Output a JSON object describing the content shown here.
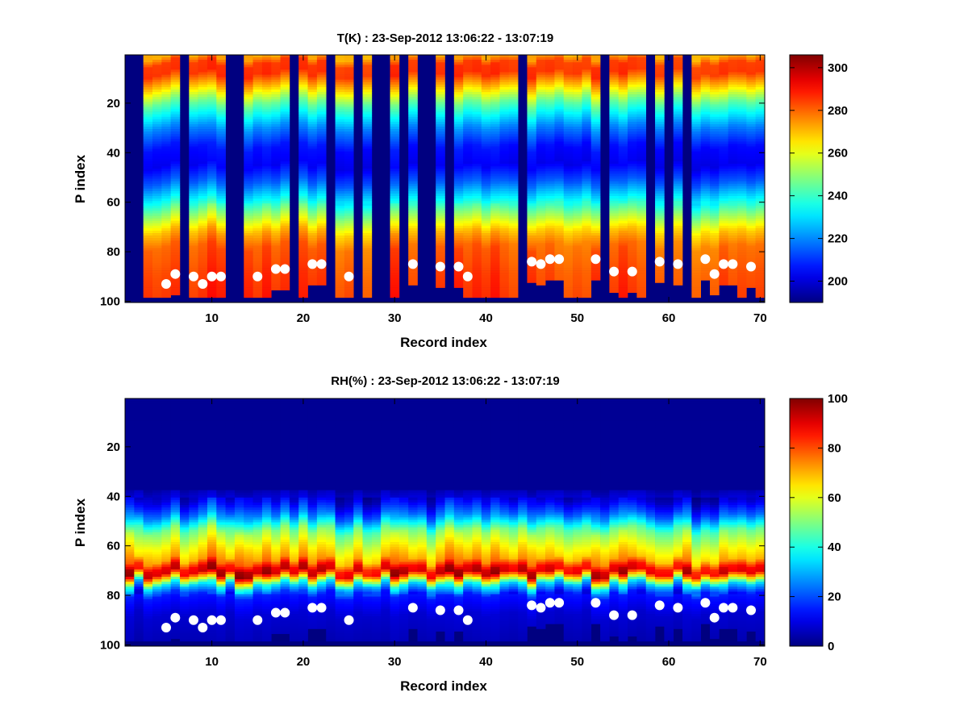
{
  "chart_data": [
    {
      "type": "heatmap",
      "title": "T(K) : 23-Sep-2012 13:06:22 - 13:07:19",
      "xlabel": "Record index",
      "ylabel": "P index",
      "xlim": [
        0.5,
        70.5
      ],
      "ylim": [
        100.5,
        0.5
      ],
      "y_reversed": true,
      "x_ticks": [
        10,
        20,
        30,
        40,
        50,
        60,
        70
      ],
      "y_ticks": [
        20,
        40,
        60,
        80,
        100
      ],
      "colormap": "jet",
      "colorbar": {
        "clim": [
          190,
          306
        ],
        "ticks": [
          200,
          220,
          240,
          260,
          280,
          300
        ]
      },
      "empty_records": [
        1,
        2,
        7,
        12,
        13,
        19,
        23,
        26,
        28,
        29,
        31,
        33,
        34,
        36,
        44,
        53,
        58,
        60,
        62
      ],
      "surface_markers": [
        {
          "x": 5,
          "y": 93
        },
        {
          "x": 6,
          "y": 89
        },
        {
          "x": 8,
          "y": 90
        },
        {
          "x": 9,
          "y": 93
        },
        {
          "x": 10,
          "y": 90
        },
        {
          "x": 11,
          "y": 90
        },
        {
          "x": 15,
          "y": 90
        },
        {
          "x": 17,
          "y": 87
        },
        {
          "x": 18,
          "y": 87
        },
        {
          "x": 21,
          "y": 85
        },
        {
          "x": 22,
          "y": 85
        },
        {
          "x": 25,
          "y": 90
        },
        {
          "x": 32,
          "y": 85
        },
        {
          "x": 35,
          "y": 86
        },
        {
          "x": 37,
          "y": 86
        },
        {
          "x": 38,
          "y": 90
        },
        {
          "x": 45,
          "y": 84
        },
        {
          "x": 46,
          "y": 85
        },
        {
          "x": 47,
          "y": 83
        },
        {
          "x": 48,
          "y": 83
        },
        {
          "x": 52,
          "y": 83
        },
        {
          "x": 54,
          "y": 88
        },
        {
          "x": 56,
          "y": 88
        },
        {
          "x": 59,
          "y": 84
        },
        {
          "x": 61,
          "y": 85
        },
        {
          "x": 64,
          "y": 83
        },
        {
          "x": 65,
          "y": 89
        },
        {
          "x": 66,
          "y": 85
        },
        {
          "x": 67,
          "y": 85
        },
        {
          "x": 69,
          "y": 86
        }
      ],
      "profile": [
        [
          1,
          272
        ],
        [
          4,
          285
        ],
        [
          8,
          286
        ],
        [
          13,
          270
        ],
        [
          20,
          245
        ],
        [
          30,
          220
        ],
        [
          38,
          206
        ],
        [
          45,
          203
        ],
        [
          52,
          215
        ],
        [
          60,
          236
        ],
        [
          67,
          256
        ],
        [
          72,
          270
        ],
        [
          78,
          280
        ],
        [
          90,
          284
        ],
        [
          100,
          286
        ]
      ]
    },
    {
      "type": "heatmap",
      "title": "RH(%) : 23-Sep-2012 13:06:22 - 13:07:19",
      "xlabel": "Record index",
      "ylabel": "P index",
      "xlim": [
        0.5,
        70.5
      ],
      "ylim": [
        100.5,
        0.5
      ],
      "y_reversed": true,
      "x_ticks": [
        10,
        20,
        30,
        40,
        50,
        60,
        70
      ],
      "y_ticks": [
        20,
        40,
        60,
        80,
        100
      ],
      "colormap": "jet",
      "colorbar": {
        "clim": [
          0,
          100
        ],
        "ticks": [
          0,
          20,
          40,
          60,
          80,
          100
        ]
      },
      "empty_records": [],
      "surface_markers": [
        {
          "x": 5,
          "y": 93
        },
        {
          "x": 6,
          "y": 89
        },
        {
          "x": 8,
          "y": 90
        },
        {
          "x": 9,
          "y": 93
        },
        {
          "x": 10,
          "y": 90
        },
        {
          "x": 11,
          "y": 90
        },
        {
          "x": 15,
          "y": 90
        },
        {
          "x": 17,
          "y": 87
        },
        {
          "x": 18,
          "y": 87
        },
        {
          "x": 21,
          "y": 85
        },
        {
          "x": 22,
          "y": 85
        },
        {
          "x": 25,
          "y": 90
        },
        {
          "x": 32,
          "y": 85
        },
        {
          "x": 35,
          "y": 86
        },
        {
          "x": 37,
          "y": 86
        },
        {
          "x": 38,
          "y": 90
        },
        {
          "x": 45,
          "y": 84
        },
        {
          "x": 46,
          "y": 85
        },
        {
          "x": 47,
          "y": 83
        },
        {
          "x": 48,
          "y": 83
        },
        {
          "x": 52,
          "y": 83
        },
        {
          "x": 54,
          "y": 88
        },
        {
          "x": 56,
          "y": 88
        },
        {
          "x": 59,
          "y": 84
        },
        {
          "x": 61,
          "y": 85
        },
        {
          "x": 64,
          "y": 83
        },
        {
          "x": 65,
          "y": 89
        },
        {
          "x": 66,
          "y": 85
        },
        {
          "x": 67,
          "y": 85
        },
        {
          "x": 69,
          "y": 86
        }
      ],
      "profile": [
        [
          1,
          2
        ],
        [
          36,
          3
        ],
        [
          42,
          10
        ],
        [
          48,
          25
        ],
        [
          54,
          50
        ],
        [
          60,
          62
        ],
        [
          66,
          72
        ],
        [
          69,
          90
        ],
        [
          71,
          92
        ],
        [
          73,
          70
        ],
        [
          76,
          35
        ],
        [
          80,
          15
        ],
        [
          88,
          8
        ],
        [
          100,
          5
        ]
      ]
    }
  ]
}
